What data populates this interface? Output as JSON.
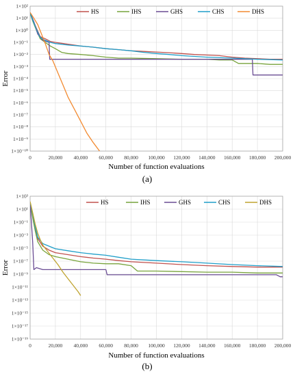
{
  "chart_data": [
    {
      "type": "line",
      "panel_label": "(a)",
      "xlabel": "Number of function evaluations",
      "ylabel": "Error",
      "x_ticks": [
        0,
        20000,
        40000,
        60000,
        80000,
        100000,
        120000,
        140000,
        160000,
        180000,
        200000
      ],
      "x_tick_labels": [
        "0",
        "20,000",
        "40,000",
        "60,000",
        "80,000",
        "100,000",
        "120,000",
        "140,000",
        "160,000",
        "180,000",
        "200,000"
      ],
      "xlim": [
        0,
        200000
      ],
      "y_scale": "log",
      "y_exponents": [
        2,
        1,
        0,
        -1,
        -2,
        -3,
        -4,
        -5,
        -6,
        -7,
        -8,
        -9,
        -10
      ],
      "y_tick_labels": [
        "1×10²",
        "1×10¹",
        "1×10⁰",
        "1×10⁻¹",
        "1×10⁻²",
        "1×10⁻³",
        "1×10⁻⁴",
        "1×10⁻⁵",
        "1×10⁻⁶",
        "1×10⁻⁷",
        "1×10⁻⁸",
        "1×10⁻⁹",
        "1×10⁻¹⁰"
      ],
      "ylim": [
        1e-10,
        100
      ],
      "grid": true,
      "legend_position": "top",
      "series": [
        {
          "name": "HS",
          "color": "#c0504d",
          "points": [
            [
              0,
              30
            ],
            [
              2000,
              8
            ],
            [
              5000,
              1.5
            ],
            [
              8000,
              0.3
            ],
            [
              12000,
              0.2
            ],
            [
              16000,
              0.12
            ],
            [
              20000,
              0.1
            ],
            [
              30000,
              0.07
            ],
            [
              40000,
              0.05
            ],
            [
              50000,
              0.04
            ],
            [
              60000,
              0.03
            ],
            [
              70000,
              0.025
            ],
            [
              80000,
              0.02
            ],
            [
              90000,
              0.018
            ],
            [
              100000,
              0.016
            ],
            [
              110000,
              0.014
            ],
            [
              120000,
              0.012
            ],
            [
              130000,
              0.01
            ],
            [
              140000,
              0.009
            ],
            [
              150000,
              0.008
            ],
            [
              160000,
              0.006
            ],
            [
              170000,
              0.005
            ],
            [
              180000,
              0.0045
            ],
            [
              190000,
              0.004
            ],
            [
              200000,
              0.004
            ]
          ]
        },
        {
          "name": "IHS",
          "color": "#77a33b",
          "points": [
            [
              0,
              25
            ],
            [
              2000,
              6
            ],
            [
              5000,
              1
            ],
            [
              8000,
              0.2
            ],
            [
              12000,
              0.1
            ],
            [
              16000,
              0.05
            ],
            [
              20000,
              0.03
            ],
            [
              25000,
              0.015
            ],
            [
              30000,
              0.012
            ],
            [
              40000,
              0.01
            ],
            [
              50000,
              0.008
            ],
            [
              60000,
              0.006
            ],
            [
              70000,
              0.005
            ],
            [
              80000,
              0.005
            ],
            [
              100000,
              0.0045
            ],
            [
              120000,
              0.004
            ],
            [
              140000,
              0.004
            ],
            [
              150000,
              0.0035
            ],
            [
              160000,
              0.0035
            ],
            [
              165000,
              0.0018
            ],
            [
              180000,
              0.0018
            ],
            [
              190000,
              0.0015
            ],
            [
              200000,
              0.0015
            ]
          ]
        },
        {
          "name": "GHS",
          "color": "#6a4c93",
          "points": [
            [
              0,
              30
            ],
            [
              3000,
              5
            ],
            [
              6000,
              0.5
            ],
            [
              10000,
              0.15
            ],
            [
              15000,
              0.1
            ],
            [
              15500,
              0.004
            ],
            [
              40000,
              0.004
            ],
            [
              80000,
              0.004
            ],
            [
              120000,
              0.004
            ],
            [
              160000,
              0.004
            ],
            [
              176000,
              0.004
            ],
            [
              176500,
              0.0002
            ],
            [
              200000,
              0.0002
            ]
          ]
        },
        {
          "name": "CHS",
          "color": "#1f9ec9",
          "points": [
            [
              0,
              28
            ],
            [
              2000,
              7
            ],
            [
              5000,
              1.2
            ],
            [
              8000,
              0.25
            ],
            [
              12000,
              0.15
            ],
            [
              16000,
              0.1
            ],
            [
              20000,
              0.08
            ],
            [
              30000,
              0.06
            ],
            [
              40000,
              0.05
            ],
            [
              50000,
              0.04
            ],
            [
              60000,
              0.03
            ],
            [
              70000,
              0.025
            ],
            [
              80000,
              0.02
            ],
            [
              90000,
              0.015
            ],
            [
              100000,
              0.012
            ],
            [
              110000,
              0.01
            ],
            [
              120000,
              0.008
            ],
            [
              140000,
              0.006
            ],
            [
              160000,
              0.005
            ],
            [
              180000,
              0.004
            ],
            [
              200000,
              0.0035
            ]
          ]
        },
        {
          "name": "DHS",
          "color": "#f28a30",
          "points": [
            [
              0,
              30
            ],
            [
              3000,
              10
            ],
            [
              6000,
              3
            ],
            [
              9000,
              0.5
            ],
            [
              12000,
              0.08
            ],
            [
              15000,
              0.01
            ],
            [
              18000,
              0.003
            ],
            [
              22000,
              0.0003
            ],
            [
              26000,
              3e-05
            ],
            [
              30000,
              3e-06
            ],
            [
              35000,
              3e-07
            ],
            [
              40000,
              3e-08
            ],
            [
              45000,
              3e-09
            ],
            [
              50000,
              5e-10
            ],
            [
              55000,
              1e-10
            ]
          ]
        }
      ]
    },
    {
      "type": "line",
      "panel_label": "(b)",
      "xlabel": "Number of function evaluations",
      "ylabel": "Error",
      "x_ticks": [
        0,
        20000,
        40000,
        60000,
        80000,
        100000,
        120000,
        140000,
        160000,
        180000,
        200000
      ],
      "x_tick_labels": [
        "0",
        "20,000",
        "40,000",
        "60,000",
        "80,000",
        "100,000",
        "120,000",
        "140,000",
        "160,000",
        "180,000",
        "200,000"
      ],
      "xlim": [
        0,
        200000
      ],
      "y_scale": "log",
      "y_exponents": [
        3,
        1,
        -1,
        -3,
        -5,
        -7,
        -9,
        -11,
        -13,
        -15,
        -17,
        -19
      ],
      "y_tick_labels": [
        "1×10³",
        "1×10¹",
        "1×10⁻¹",
        "1×10⁻³",
        "1×10⁻⁵",
        "1×10⁻⁷",
        "1×10⁻⁹",
        "1×10⁻¹¹",
        "1×10⁻¹³",
        "1×10⁻¹⁵",
        "1×10⁻¹⁷",
        "1×10⁻¹⁹"
      ],
      "ylim": [
        1e-19,
        1000
      ],
      "grid": true,
      "legend_position": "top",
      "series": [
        {
          "name": "HS",
          "color": "#c0504d",
          "points": [
            [
              0,
              100
            ],
            [
              2000,
              1
            ],
            [
              4000,
              0.01
            ],
            [
              6000,
              0.0003
            ],
            [
              10000,
              2e-05
            ],
            [
              15000,
              5e-06
            ],
            [
              20000,
              2e-06
            ],
            [
              30000,
              1e-06
            ],
            [
              40000,
              5e-07
            ],
            [
              50000,
              3e-07
            ],
            [
              60000,
              2e-07
            ],
            [
              70000,
              1.2e-07
            ],
            [
              80000,
              8e-08
            ],
            [
              100000,
              5e-08
            ],
            [
              120000,
              3e-08
            ],
            [
              140000,
              2e-08
            ],
            [
              160000,
              1.5e-08
            ],
            [
              180000,
              1.2e-08
            ],
            [
              200000,
              1.2e-08
            ]
          ]
        },
        {
          "name": "IHS",
          "color": "#77a33b",
          "points": [
            [
              0,
              80
            ],
            [
              2000,
              0.5
            ],
            [
              4000,
              0.005
            ],
            [
              6000,
              0.0001
            ],
            [
              10000,
              5e-06
            ],
            [
              15000,
              1e-06
            ],
            [
              20000,
              5e-07
            ],
            [
              30000,
              2e-07
            ],
            [
              40000,
              8e-08
            ],
            [
              50000,
              5e-08
            ],
            [
              60000,
              4e-08
            ],
            [
              70000,
              4e-08
            ],
            [
              80000,
              2e-08
            ],
            [
              85000,
              3e-09
            ],
            [
              100000,
              3e-09
            ],
            [
              140000,
              2e-09
            ],
            [
              160000,
              2e-09
            ],
            [
              180000,
              1.5e-09
            ],
            [
              200000,
              1.5e-09
            ]
          ]
        },
        {
          "name": "GHS",
          "color": "#6a4c93",
          "points": [
            [
              0,
              100
            ],
            [
              2000,
              0.0001
            ],
            [
              3000,
              5e-09
            ],
            [
              5000,
              1e-08
            ],
            [
              10000,
              5e-09
            ],
            [
              30000,
              5e-09
            ],
            [
              60000,
              5e-09
            ],
            [
              61000,
              8e-10
            ],
            [
              100000,
              8e-10
            ],
            [
              140000,
              8e-10
            ],
            [
              180000,
              8e-10
            ],
            [
              195000,
              8e-10
            ],
            [
              198000,
              4e-10
            ],
            [
              200000,
              4e-10
            ]
          ]
        },
        {
          "name": "CHS",
          "color": "#1f9ec9",
          "points": [
            [
              0,
              120
            ],
            [
              2000,
              2
            ],
            [
              4000,
              0.02
            ],
            [
              6000,
              0.0005
            ],
            [
              10000,
              5e-05
            ],
            [
              15000,
              2e-05
            ],
            [
              20000,
              8e-06
            ],
            [
              30000,
              4e-06
            ],
            [
              40000,
              2e-06
            ],
            [
              50000,
              1.2e-06
            ],
            [
              60000,
              8e-07
            ],
            [
              70000,
              4e-07
            ],
            [
              80000,
              2e-07
            ],
            [
              100000,
              1.2e-07
            ],
            [
              120000,
              8e-08
            ],
            [
              140000,
              5e-08
            ],
            [
              160000,
              3e-08
            ],
            [
              180000,
              2e-08
            ],
            [
              200000,
              1.5e-08
            ]
          ]
        },
        {
          "name": "DHS",
          "color": "#bfa32f",
          "points": [
            [
              0,
              150
            ],
            [
              2000,
              3
            ],
            [
              4000,
              0.05
            ],
            [
              6000,
              0.002
            ],
            [
              8000,
              0.0002
            ],
            [
              10000,
              3e-05
            ],
            [
              14000,
              3e-06
            ],
            [
              18000,
              3e-07
            ],
            [
              22000,
              3e-08
            ],
            [
              26000,
              2e-09
            ],
            [
              30000,
              2e-10
            ],
            [
              34000,
              2e-11
            ],
            [
              38000,
              2e-12
            ],
            [
              40000,
              5e-13
            ]
          ]
        }
      ]
    }
  ]
}
